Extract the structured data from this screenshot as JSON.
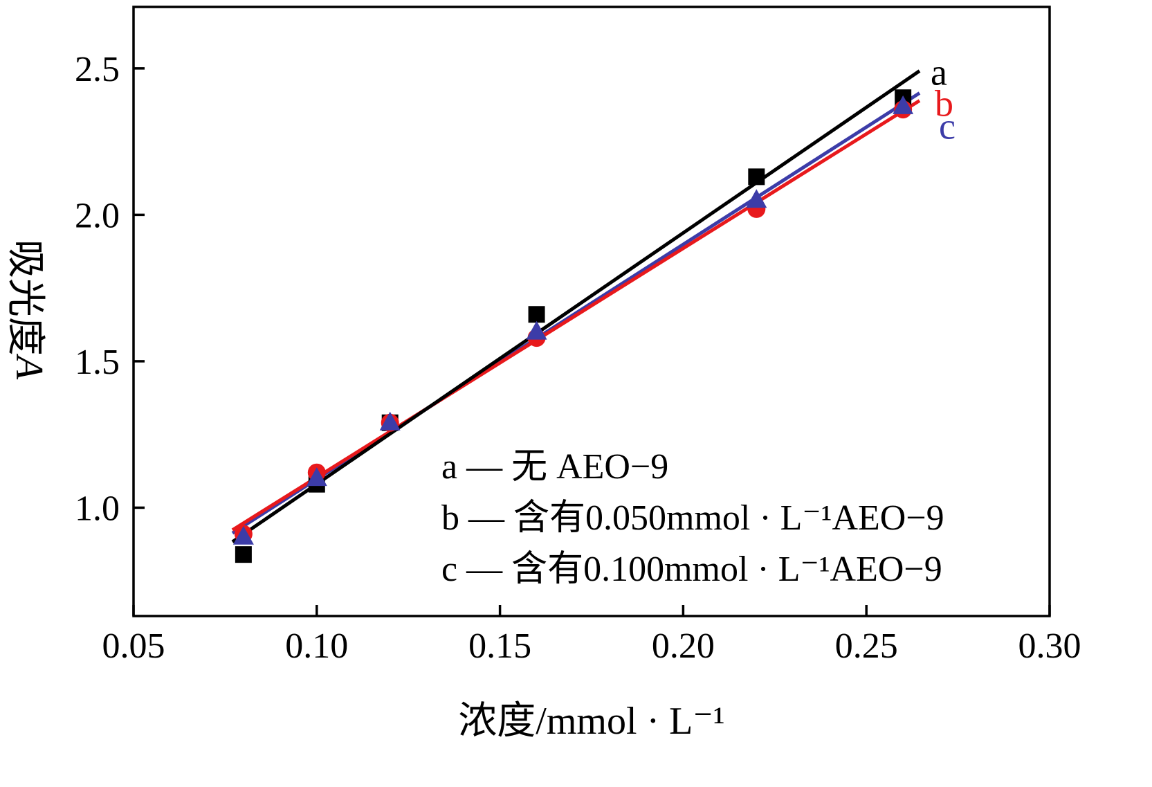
{
  "figure": {
    "background": "#ffffff",
    "axis_color": "#000000"
  },
  "chart_data": {
    "type": "scatter",
    "title": "",
    "xlabel": {
      "text": "浓度/mmol · L⁻¹"
    },
    "ylabel": {
      "text": "吸光度",
      "italic_suffix": "A"
    },
    "xlim": [
      0.05,
      0.3
    ],
    "ylim": [
      0.63,
      2.71
    ],
    "grid": false,
    "x_ticks": [
      {
        "v": 0.05,
        "label": "0.05"
      },
      {
        "v": 0.1,
        "label": "0.10"
      },
      {
        "v": 0.15,
        "label": "0.15"
      },
      {
        "v": 0.2,
        "label": "0.20"
      },
      {
        "v": 0.25,
        "label": "0.25"
      },
      {
        "v": 0.3,
        "label": "0.30"
      }
    ],
    "y_ticks": [
      {
        "v": 1.0,
        "label": "1.0"
      },
      {
        "v": 1.5,
        "label": "1.5"
      },
      {
        "v": 2.0,
        "label": "2.0"
      },
      {
        "v": 2.5,
        "label": "2.5"
      }
    ],
    "fit_range": [
      0.077,
      0.2645
    ],
    "series": [
      {
        "id": "a",
        "name": "a",
        "description": "无 AEO−9",
        "marker": "square",
        "color": "#000000",
        "x": [
          0.08,
          0.1,
          0.12,
          0.16,
          0.22,
          0.26
        ],
        "y": [
          0.84,
          1.08,
          1.29,
          1.66,
          2.13,
          2.4
        ],
        "end_label": "a",
        "fit_line": true
      },
      {
        "id": "b",
        "name": "b",
        "description": "含有0.050mmol · L⁻¹AEO−9",
        "marker": "circle",
        "color": "#e8191c",
        "x": [
          0.08,
          0.1,
          0.12,
          0.16,
          0.22,
          0.26
        ],
        "y": [
          0.91,
          1.12,
          1.29,
          1.58,
          2.02,
          2.36
        ],
        "end_label": "b",
        "fit_line": true
      },
      {
        "id": "c",
        "name": "c",
        "description": "含有0.100mmol · L⁻¹AEO−9",
        "marker": "triangle",
        "color": "#3c3ca8",
        "x": [
          0.08,
          0.1,
          0.12,
          0.16,
          0.22,
          0.26
        ],
        "y": [
          0.9,
          1.1,
          1.29,
          1.6,
          2.05,
          2.37
        ],
        "end_label": "c",
        "fit_line": true
      }
    ],
    "legend": {
      "position": "inside-bottom-center",
      "items": [
        {
          "text": "a — 无 AEO−9"
        },
        {
          "text": "b — 含有0.050mmol · L⁻¹AEO−9"
        },
        {
          "text": "c — 含有0.100mmol · L⁻¹AEO−9"
        }
      ]
    }
  }
}
